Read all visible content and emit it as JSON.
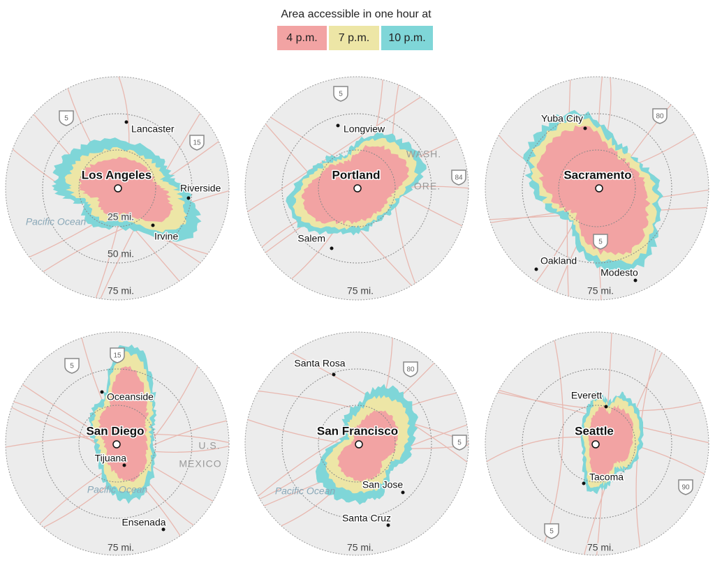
{
  "legend": {
    "title": "Area accessible in one hour at",
    "items": [
      {
        "label": "4 p.m.",
        "color": "#f2a3a3"
      },
      {
        "label": "7 p.m.",
        "color": "#ede6a6"
      },
      {
        "label": "10 p.m.",
        "color": "#7fd6d8"
      }
    ]
  },
  "maps": [
    {
      "city": "Los Angeles",
      "places": [
        "Lancaster",
        "Riverside",
        "Irvine"
      ],
      "ring_labels": [
        "25 mi.",
        "50 mi.",
        "75 mi."
      ],
      "water": [
        "Pacific Ocean"
      ],
      "highways": [
        "5",
        "15"
      ],
      "regions": []
    },
    {
      "city": "Portland",
      "places": [
        "Longview",
        "Salem"
      ],
      "ring_labels": [
        "75 mi."
      ],
      "water": [],
      "highways": [
        "5",
        "84"
      ],
      "regions": [
        "WASH.",
        "ORE."
      ]
    },
    {
      "city": "Sacramento",
      "places": [
        "Yuba City",
        "Oakland",
        "Modesto"
      ],
      "ring_labels": [
        "75 mi."
      ],
      "water": [],
      "highways": [
        "80",
        "5"
      ],
      "regions": []
    },
    {
      "city": "San Diego",
      "places": [
        "Oceanside",
        "Tijuana",
        "Ensenada"
      ],
      "ring_labels": [
        "75 mi."
      ],
      "water": [
        "Pacific Ocean"
      ],
      "highways": [
        "5",
        "15"
      ],
      "regions": [
        "U.S.",
        "MEXICO"
      ]
    },
    {
      "city": "San Francisco",
      "places": [
        "Santa Rosa",
        "San Jose",
        "Santa Cruz"
      ],
      "ring_labels": [
        "75 mi."
      ],
      "water": [
        "Pacific Ocean"
      ],
      "highways": [
        "80",
        "5"
      ],
      "regions": []
    },
    {
      "city": "Seattle",
      "places": [
        "Everett",
        "Tacoma"
      ],
      "ring_labels": [
        "75 mi."
      ],
      "water": [],
      "highways": [
        "90",
        "5"
      ],
      "regions": []
    }
  ]
}
